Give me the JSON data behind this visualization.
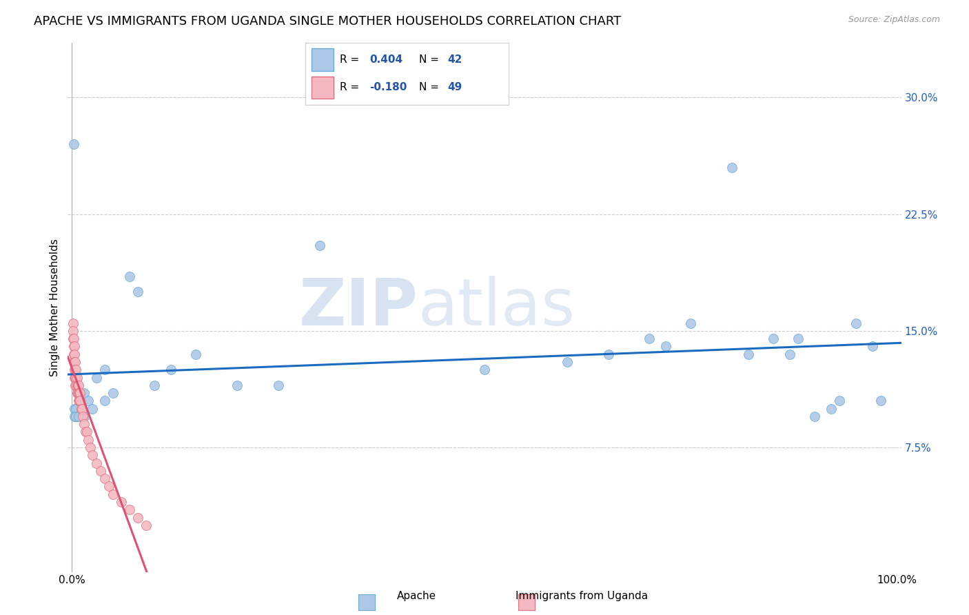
{
  "title": "APACHE VS IMMIGRANTS FROM UGANDA SINGLE MOTHER HOUSEHOLDS CORRELATION CHART",
  "source": "Source: ZipAtlas.com",
  "xlabel": "",
  "ylabel": "Single Mother Households",
  "xlim": [
    -0.005,
    1.005
  ],
  "ylim": [
    -0.005,
    0.335
  ],
  "yticks": [
    0.075,
    0.15,
    0.225,
    0.3
  ],
  "ytick_labels": [
    "7.5%",
    "15.0%",
    "22.5%",
    "30.0%"
  ],
  "xticks": [
    0.0,
    1.0
  ],
  "xtick_labels": [
    "0.0%",
    "100.0%"
  ],
  "watermark_zip": "ZIP",
  "watermark_atlas": "atlas",
  "series": [
    {
      "name": "Apache",
      "color": "#adc8e6",
      "edge_color": "#6aaad4",
      "line_color": "#1a6bbf",
      "x": [
        0.002,
        0.003,
        0.004,
        0.005,
        0.007,
        0.01,
        0.015,
        0.02,
        0.03,
        0.04,
        0.05,
        0.07,
        0.08,
        0.1,
        0.12,
        0.15,
        0.2,
        0.25,
        0.3,
        0.5,
        0.6,
        0.65,
        0.7,
        0.72,
        0.75,
        0.8,
        0.82,
        0.85,
        0.87,
        0.88,
        0.9,
        0.92,
        0.93,
        0.95,
        0.97,
        0.98,
        0.003,
        0.005,
        0.008,
        0.015,
        0.025,
        0.04
      ],
      "y": [
        0.27,
        0.1,
        0.095,
        0.1,
        0.095,
        0.105,
        0.11,
        0.105,
        0.12,
        0.125,
        0.11,
        0.185,
        0.175,
        0.115,
        0.125,
        0.135,
        0.115,
        0.115,
        0.205,
        0.125,
        0.13,
        0.135,
        0.145,
        0.14,
        0.155,
        0.255,
        0.135,
        0.145,
        0.135,
        0.145,
        0.095,
        0.1,
        0.105,
        0.155,
        0.14,
        0.105,
        0.095,
        0.095,
        0.095,
        0.095,
        0.1,
        0.105
      ]
    },
    {
      "name": "Immigrants from Uganda",
      "color": "#f4b8c0",
      "edge_color": "#e07080",
      "line_color": "#e05070",
      "x": [
        0.001,
        0.001,
        0.001,
        0.002,
        0.002,
        0.002,
        0.002,
        0.003,
        0.003,
        0.003,
        0.003,
        0.003,
        0.004,
        0.004,
        0.004,
        0.004,
        0.005,
        0.005,
        0.005,
        0.006,
        0.006,
        0.006,
        0.007,
        0.007,
        0.008,
        0.008,
        0.008,
        0.009,
        0.009,
        0.01,
        0.01,
        0.011,
        0.012,
        0.013,
        0.015,
        0.016,
        0.018,
        0.02,
        0.022,
        0.025,
        0.03,
        0.035,
        0.04,
        0.045,
        0.05,
        0.06,
        0.07,
        0.08,
        0.09
      ],
      "y": [
        0.155,
        0.15,
        0.145,
        0.145,
        0.14,
        0.135,
        0.13,
        0.14,
        0.135,
        0.13,
        0.125,
        0.12,
        0.13,
        0.125,
        0.12,
        0.115,
        0.125,
        0.12,
        0.115,
        0.12,
        0.115,
        0.11,
        0.115,
        0.11,
        0.115,
        0.11,
        0.105,
        0.11,
        0.105,
        0.11,
        0.105,
        0.1,
        0.1,
        0.095,
        0.09,
        0.085,
        0.085,
        0.08,
        0.075,
        0.07,
        0.065,
        0.06,
        0.055,
        0.05,
        0.045,
        0.04,
        0.035,
        0.03,
        0.025
      ]
    }
  ],
  "background_color": "#ffffff",
  "plot_bg_color": "#ffffff",
  "grid_color": "#cccccc",
  "title_fontsize": 13,
  "axis_label_fontsize": 11,
  "tick_fontsize": 11,
  "legend_fontsize": 11,
  "legend_r_color": "#2255aa",
  "legend_n_color": "#2255aa"
}
